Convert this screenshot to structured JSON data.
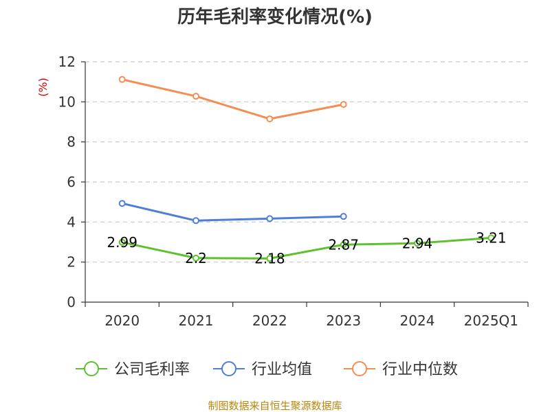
{
  "chart_data": {
    "type": "line",
    "title": "历年毛利率变化情况(%)",
    "ylabel": "(%)",
    "ylim": [
      0,
      12
    ],
    "yticks": [
      0,
      2,
      4,
      6,
      8,
      10,
      12
    ],
    "categories": [
      "2020",
      "2021",
      "2022",
      "2023",
      "2024",
      "2025Q1"
    ],
    "grid": true,
    "legend_position": "bottom",
    "series": [
      {
        "name": "公司毛利率",
        "color": "#5cc12c",
        "values": [
          2.99,
          2.2,
          2.18,
          2.87,
          2.94,
          3.21
        ],
        "labels": [
          "2.99",
          "2.2",
          "2.18",
          "2.87",
          "2.94",
          "3.21"
        ]
      },
      {
        "name": "行业均值",
        "color": "#4d7fd8",
        "values": [
          4.93,
          4.07,
          4.17,
          4.28,
          null,
          null
        ]
      },
      {
        "name": "行业中位数",
        "color": "#f58d52",
        "values": [
          11.12,
          10.28,
          9.15,
          9.87,
          null,
          null
        ]
      }
    ]
  },
  "source_text": "制图数据来自恒生聚源数据库"
}
